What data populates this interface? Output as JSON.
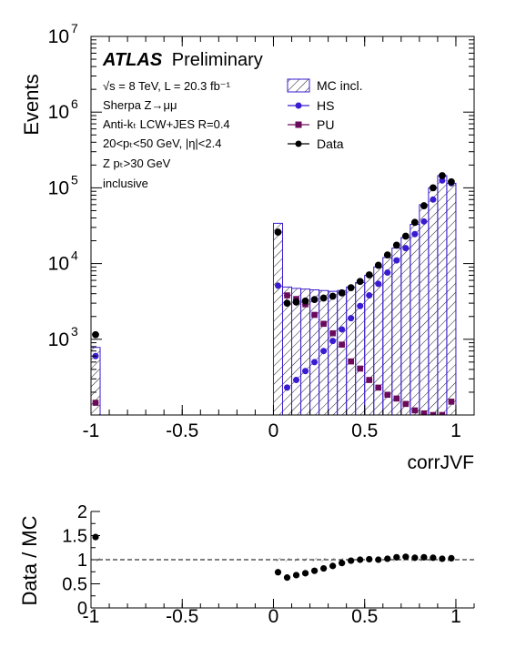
{
  "chart_data": [
    {
      "type": "histogram",
      "xlabel": "corrJVF",
      "ylabel": "Events",
      "xlim": [
        -1.0,
        1.1
      ],
      "ylim": [
        100,
        10000000
      ],
      "yscale": "log",
      "x_ticks": [
        "-1",
        "-0.5",
        "0",
        "0.5",
        "1"
      ],
      "y_ticks": [
        {
          "base": "10",
          "exp": "3"
        },
        {
          "base": "10",
          "exp": "4"
        },
        {
          "base": "10",
          "exp": "5"
        },
        {
          "base": "10",
          "exp": "6"
        },
        {
          "base": "10",
          "exp": "7"
        }
      ],
      "mc_hist": [
        {
          "x0": -1.0,
          "x1": -0.95,
          "value": 780
        },
        {
          "x0": 0.0,
          "x1": 0.05,
          "value": 34000
        },
        {
          "x0": 0.05,
          "x1": 0.1,
          "value": 4900
        },
        {
          "x0": 0.1,
          "x1": 0.15,
          "value": 4700
        },
        {
          "x0": 0.15,
          "x1": 0.2,
          "value": 4600
        },
        {
          "x0": 0.2,
          "x1": 0.25,
          "value": 4500
        },
        {
          "x0": 0.25,
          "x1": 0.3,
          "value": 4400
        },
        {
          "x0": 0.3,
          "x1": 0.35,
          "value": 4300
        },
        {
          "x0": 0.35,
          "x1": 0.4,
          "value": 4400
        },
        {
          "x0": 0.4,
          "x1": 0.45,
          "value": 4900
        },
        {
          "x0": 0.45,
          "x1": 0.5,
          "value": 5600
        },
        {
          "x0": 0.5,
          "x1": 0.55,
          "value": 7000
        },
        {
          "x0": 0.55,
          "x1": 0.6,
          "value": 9000
        },
        {
          "x0": 0.6,
          "x1": 0.65,
          "value": 12000
        },
        {
          "x0": 0.65,
          "x1": 0.7,
          "value": 16000
        },
        {
          "x0": 0.7,
          "x1": 0.75,
          "value": 22000
        },
        {
          "x0": 0.75,
          "x1": 0.8,
          "value": 33000
        },
        {
          "x0": 0.8,
          "x1": 0.85,
          "value": 60000
        },
        {
          "x0": 0.85,
          "x1": 0.9,
          "value": 100000
        },
        {
          "x0": 0.9,
          "x1": 0.95,
          "value": 145000
        },
        {
          "x0": 0.95,
          "x1": 1.0,
          "value": 115000
        }
      ],
      "series": [
        {
          "name": "HS",
          "color": "#3b1bd1",
          "x": [
            -0.975,
            0.025,
            0.075,
            0.125,
            0.175,
            0.225,
            0.275,
            0.325,
            0.375,
            0.425,
            0.475,
            0.525,
            0.575,
            0.625,
            0.675,
            0.725,
            0.775,
            0.825,
            0.875,
            0.925,
            0.975
          ],
          "y": [
            600,
            5100,
            230,
            290,
            380,
            500,
            700,
            950,
            1350,
            1900,
            2750,
            3800,
            5400,
            7600,
            11000,
            16000,
            24500,
            36000,
            70000,
            125000,
            115000
          ]
        },
        {
          "name": "PU",
          "color": "#6a0a5a",
          "x": [
            -0.975,
            0.075,
            0.125,
            0.175,
            0.225,
            0.275,
            0.325,
            0.375,
            0.425,
            0.475,
            0.525,
            0.575,
            0.625,
            0.675,
            0.725,
            0.775,
            0.825,
            0.875,
            0.925,
            0.975
          ],
          "y": [
            145,
            3800,
            3400,
            2900,
            2100,
            1600,
            1200,
            850,
            510,
            410,
            290,
            230,
            185,
            165,
            140,
            115,
            105,
            100,
            100,
            150
          ]
        },
        {
          "name": "Data",
          "color": "#000000",
          "x": [
            -0.975,
            0.025,
            0.075,
            0.125,
            0.175,
            0.225,
            0.275,
            0.325,
            0.375,
            0.425,
            0.475,
            0.525,
            0.575,
            0.625,
            0.675,
            0.725,
            0.775,
            0.825,
            0.875,
            0.925,
            0.975
          ],
          "y": [
            1150,
            26000,
            3000,
            3100,
            3200,
            3350,
            3500,
            3700,
            4100,
            4800,
            5800,
            7100,
            9500,
            13000,
            17500,
            23000,
            35000,
            58000,
            100000,
            145000,
            120000
          ]
        }
      ],
      "legend": [
        {
          "label": "MC incl.",
          "kind": "hatch"
        },
        {
          "label": "HS",
          "kind": "marker",
          "color": "#3b1bd1"
        },
        {
          "label": "PU",
          "kind": "marker",
          "color": "#6a0a5a"
        },
        {
          "label": "Data",
          "kind": "marker",
          "color": "#000000"
        }
      ],
      "legend_position": "top-right",
      "annotations": {
        "atlas": "ATLAS",
        "preliminary": "Preliminary",
        "lines": [
          "√s = 8 TeV, L = 20.3 fb⁻¹",
          "Sherpa Z→μμ",
          "Anti-kₜ LCW+JES R=0.4",
          "20<pₜ<50 GeV, |η|<2.4",
          "Z pₜ>30 GeV",
          "inclusive"
        ]
      }
    },
    {
      "type": "scatter",
      "ylabel": "Data / MC",
      "xlim": [
        -1.0,
        1.1
      ],
      "ylim": [
        0,
        2
      ],
      "x_ticks": [
        "-1",
        "-0.5",
        "0",
        "0.5",
        "1"
      ],
      "y_ticks": [
        "0",
        "0.5",
        "1",
        "1.5",
        "2"
      ],
      "reference_line": 1,
      "x": [
        -0.975,
        0.025,
        0.075,
        0.125,
        0.175,
        0.225,
        0.275,
        0.325,
        0.375,
        0.425,
        0.475,
        0.525,
        0.575,
        0.625,
        0.675,
        0.725,
        0.775,
        0.825,
        0.875,
        0.925,
        0.975
      ],
      "y": [
        1.47,
        0.74,
        0.63,
        0.68,
        0.72,
        0.77,
        0.82,
        0.87,
        0.93,
        0.98,
        1.0,
        1.01,
        1.0,
        1.02,
        1.05,
        1.06,
        1.04,
        1.05,
        1.04,
        1.02,
        1.03
      ]
    }
  ]
}
